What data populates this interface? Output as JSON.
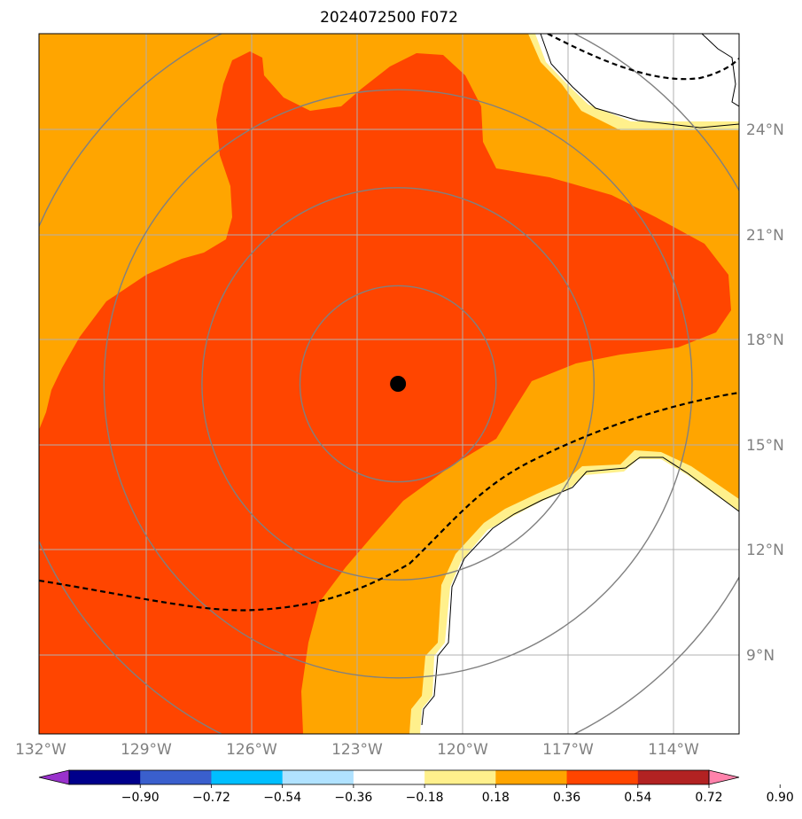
{
  "title": "2024072500 F072",
  "map": {
    "lon_min": -132,
    "lon_max": -112.5,
    "lat_min": 6.8,
    "lat_max": 26.8,
    "grid": true,
    "center_marker": {
      "lon": -122.0,
      "lat": 16.8
    },
    "range_rings_deg": [
      2.8,
      5.6,
      8.4,
      11.2
    ],
    "lat_ticks": [
      {
        "value": 9,
        "label": "9°N"
      },
      {
        "value": 12,
        "label": "12°N"
      },
      {
        "value": 15,
        "label": "15°N"
      },
      {
        "value": 18,
        "label": "18°N"
      },
      {
        "value": 21,
        "label": "21°N"
      },
      {
        "value": 24,
        "label": "24°N"
      }
    ],
    "lon_ticks": [
      {
        "value": -132,
        "label": "132°W"
      },
      {
        "value": -129,
        "label": "129°W"
      },
      {
        "value": -126,
        "label": "126°W"
      },
      {
        "value": -123,
        "label": "123°W"
      },
      {
        "value": -120,
        "label": "120°W"
      },
      {
        "value": -117,
        "label": "117°W"
      },
      {
        "value": -114,
        "label": "114°W"
      }
    ]
  },
  "colorbar": {
    "extend": "both",
    "boundaries": [
      "-0.90",
      "-0.72",
      "-0.54",
      "-0.36",
      "-0.18",
      "0.18",
      "0.36",
      "0.54",
      "0.72",
      "0.90"
    ],
    "colors": [
      "#9932cc",
      "#00008b",
      "#3a5fcd",
      "#00bfff",
      "#b0e2ff",
      "#ffffff",
      "#fff08c",
      "#ffa500",
      "#ff4500",
      "#b22222",
      "#ff82ab"
    ]
  },
  "fill_colors": {
    "level_018_036": "#fff08c",
    "level_036_054": "#ffa500",
    "level_054_072": "#ff4500"
  }
}
